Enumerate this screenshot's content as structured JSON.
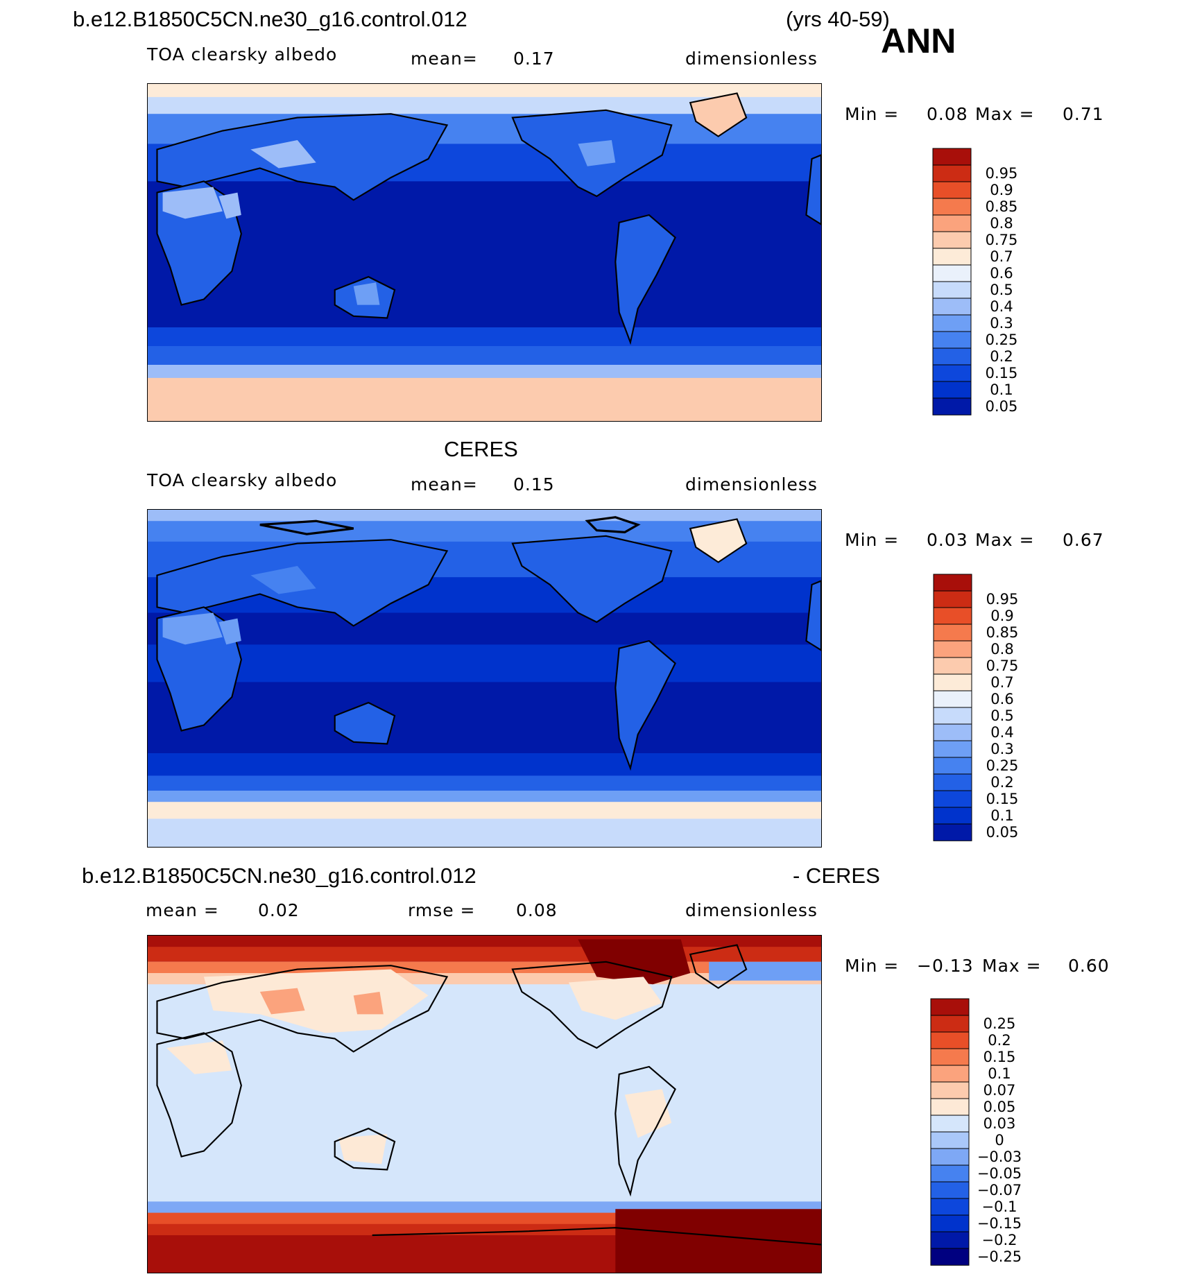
{
  "case_name": "b.e12.B1850C5CN.ne30_g16.control.012",
  "years": "(yrs 40-59)",
  "season": "ANN",
  "obs_name": "CERES",
  "diff_suffix": "- CERES",
  "colors": {
    "abs_scale": [
      "#000080",
      "#0019a8",
      "#0033cc",
      "#0d47dc",
      "#2361e6",
      "#4682f0",
      "#6e9ff5",
      "#9dbdf8",
      "#c7dbfb",
      "#eaf1fb",
      "#fdebd8",
      "#fccbae",
      "#fba37d",
      "#f57a4d",
      "#e84f28",
      "#cc2c14",
      "#a80f0a",
      "#800000"
    ],
    "diff_scale": [
      "#000080",
      "#0019a8",
      "#0033cc",
      "#0d47dc",
      "#2361e6",
      "#4682f0",
      "#7ea8f5",
      "#aac8f9",
      "#d5e6fb",
      "#fde9d6",
      "#fccbae",
      "#fba37d",
      "#f57a4d",
      "#e84f28",
      "#cc2c14",
      "#a80f0a",
      "#800000"
    ]
  },
  "panels": [
    {
      "id": "model",
      "variable": "TOA clearsky albedo",
      "stat_label": "mean=",
      "stat_value": "0.17",
      "units": "dimensionless",
      "min_label": "Min =",
      "min_value": "0.08",
      "max_label": "Max =",
      "max_value": "0.71",
      "colorbar_levels": [
        "0.95",
        "0.9",
        "0.85",
        "0.8",
        "0.75",
        "0.7",
        "0.6",
        "0.5",
        "0.4",
        "0.3",
        "0.25",
        "0.2",
        "0.15",
        "0.1",
        "0.05"
      ]
    },
    {
      "id": "obs",
      "variable": "TOA clearsky albedo",
      "stat_label": "mean=",
      "stat_value": "0.15",
      "units": "dimensionless",
      "min_label": "Min =",
      "min_value": "0.03",
      "max_label": "Max =",
      "max_value": "0.67",
      "colorbar_levels": [
        "0.95",
        "0.9",
        "0.85",
        "0.8",
        "0.75",
        "0.7",
        "0.6",
        "0.5",
        "0.4",
        "0.3",
        "0.25",
        "0.2",
        "0.15",
        "0.1",
        "0.05"
      ]
    },
    {
      "id": "diff",
      "stat_label": "mean =",
      "stat_value": "0.02",
      "rmse_label": "rmse =",
      "rmse_value": "0.08",
      "units": "dimensionless",
      "min_label": "Min =",
      "min_value": "−0.13",
      "max_label": "Max =",
      "max_value": "0.60",
      "colorbar_levels": [
        "0.25",
        "0.2",
        "0.15",
        "0.1",
        "0.07",
        "0.05",
        "0.03",
        "0",
        "−0.03",
        "−0.05",
        "−0.07",
        "−0.1",
        "−0.15",
        "−0.2",
        "−0.25"
      ]
    }
  ]
}
